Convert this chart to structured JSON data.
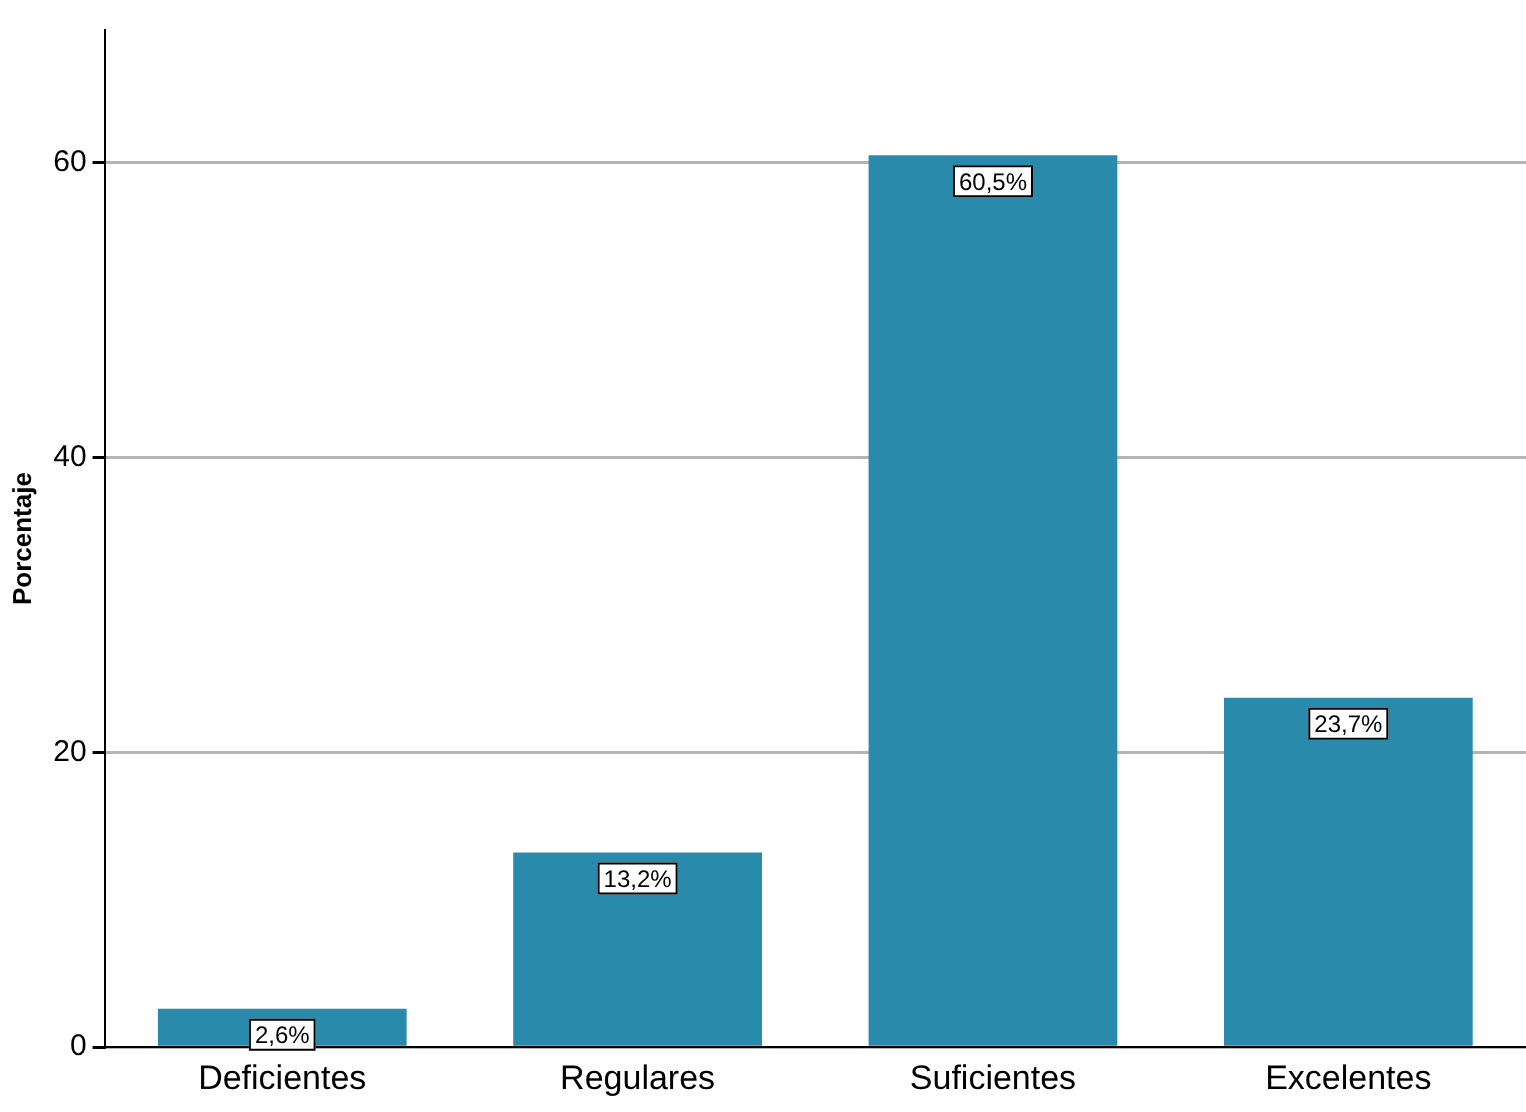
{
  "chart_data": {
    "type": "bar",
    "ylabel": "Porcentaje",
    "categories": [
      "Deficientes",
      "Regulares",
      "Suficientes",
      "Excelentes"
    ],
    "values": [
      2.6,
      13.2,
      60.5,
      23.7
    ],
    "value_labels": [
      "2,6%",
      "13,2%",
      "60,5%",
      "23,7%"
    ],
    "color": "#2a8aab",
    "ylim": [
      0,
      69
    ],
    "yticks": [
      0,
      20,
      40,
      60
    ],
    "grid": "y",
    "legend": false
  }
}
